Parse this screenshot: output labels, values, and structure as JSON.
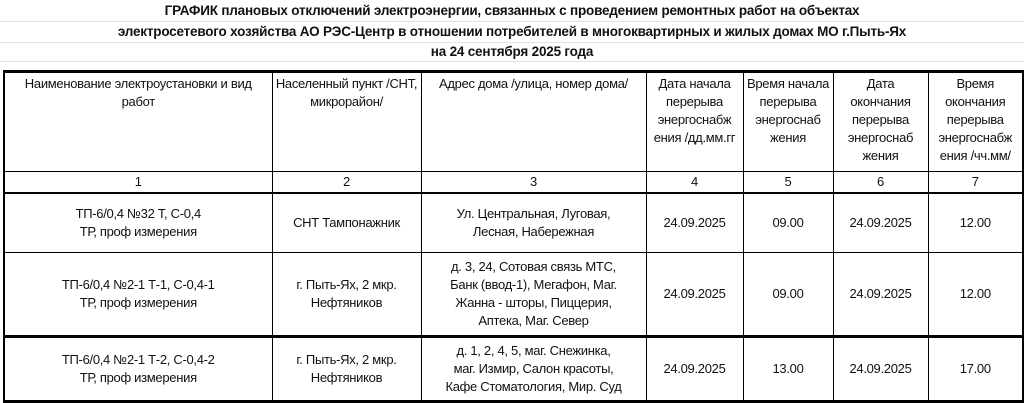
{
  "title": {
    "line1": "ГРАФИК плановых отключений электроэнергии, связанных с проведением ремонтных работ на объектах",
    "line2": "электросетевого хозяйства АО РЭС-Центр в отношении потребителей в многоквартирных и жилых домах МО г.Пыть-Ях",
    "line3": "на  24 сентября  2025 года"
  },
  "table": {
    "headers": [
      "Наименование электроустановки и вид работ",
      "Населенный пункт /СНТ, микрорайон/",
      "Адрес дома /улица, номер дома/",
      "Дата начала перерыва энергоснабж ения /дд.мм.гг",
      "Время начала перерыва энергоснаб жения",
      "Дата окончания перерыва энергоснаб жения",
      "Время окончания перерыва энергоснабж ения /чч.мм/"
    ],
    "column_numbers": [
      "1",
      "2",
      "3",
      "4",
      "5",
      "6",
      "7"
    ],
    "rows": [
      {
        "installation": "ТП-6/0,4 №32 Т, С-0,4\nТР, проф измерения",
        "locality": "СНТ Тампонажник",
        "address": "Ул. Центральная, Луговая,\nЛесная, Набережная",
        "start_date": "24.09.2025",
        "start_time": "09.00",
        "end_date": "24.09.2025",
        "end_time": "12.00"
      },
      {
        "installation": "ТП-6/0,4 №2-1 Т-1, С-0,4-1\nТР, проф измерения",
        "locality": "г. Пыть-Ях, 2 мкр.\nНефтяников",
        "address": "д. 3, 24, Сотовая связь МТС,\nБанк (ввод-1), Мегафон, Маг.\nЖанна - шторы, Пиццерия,\nАптека, Маг. Север",
        "start_date": "24.09.2025",
        "start_time": "09.00",
        "end_date": "24.09.2025",
        "end_time": "12.00"
      },
      {
        "installation": "ТП-6/0,4 №2-1 Т-2, С-0,4-2\nТР, проф измерения",
        "locality": "г. Пыть-Ях, 2 мкр.\nНефтяников",
        "address": "д. 1, 2, 4, 5, маг. Снежинка,\nмаг. Измир, Салон красоты,\nКафе Стоматология, Мир. Суд",
        "start_date": "24.09.2025",
        "start_time": "13.00",
        "end_date": "24.09.2025",
        "end_time": "17.00"
      }
    ]
  }
}
